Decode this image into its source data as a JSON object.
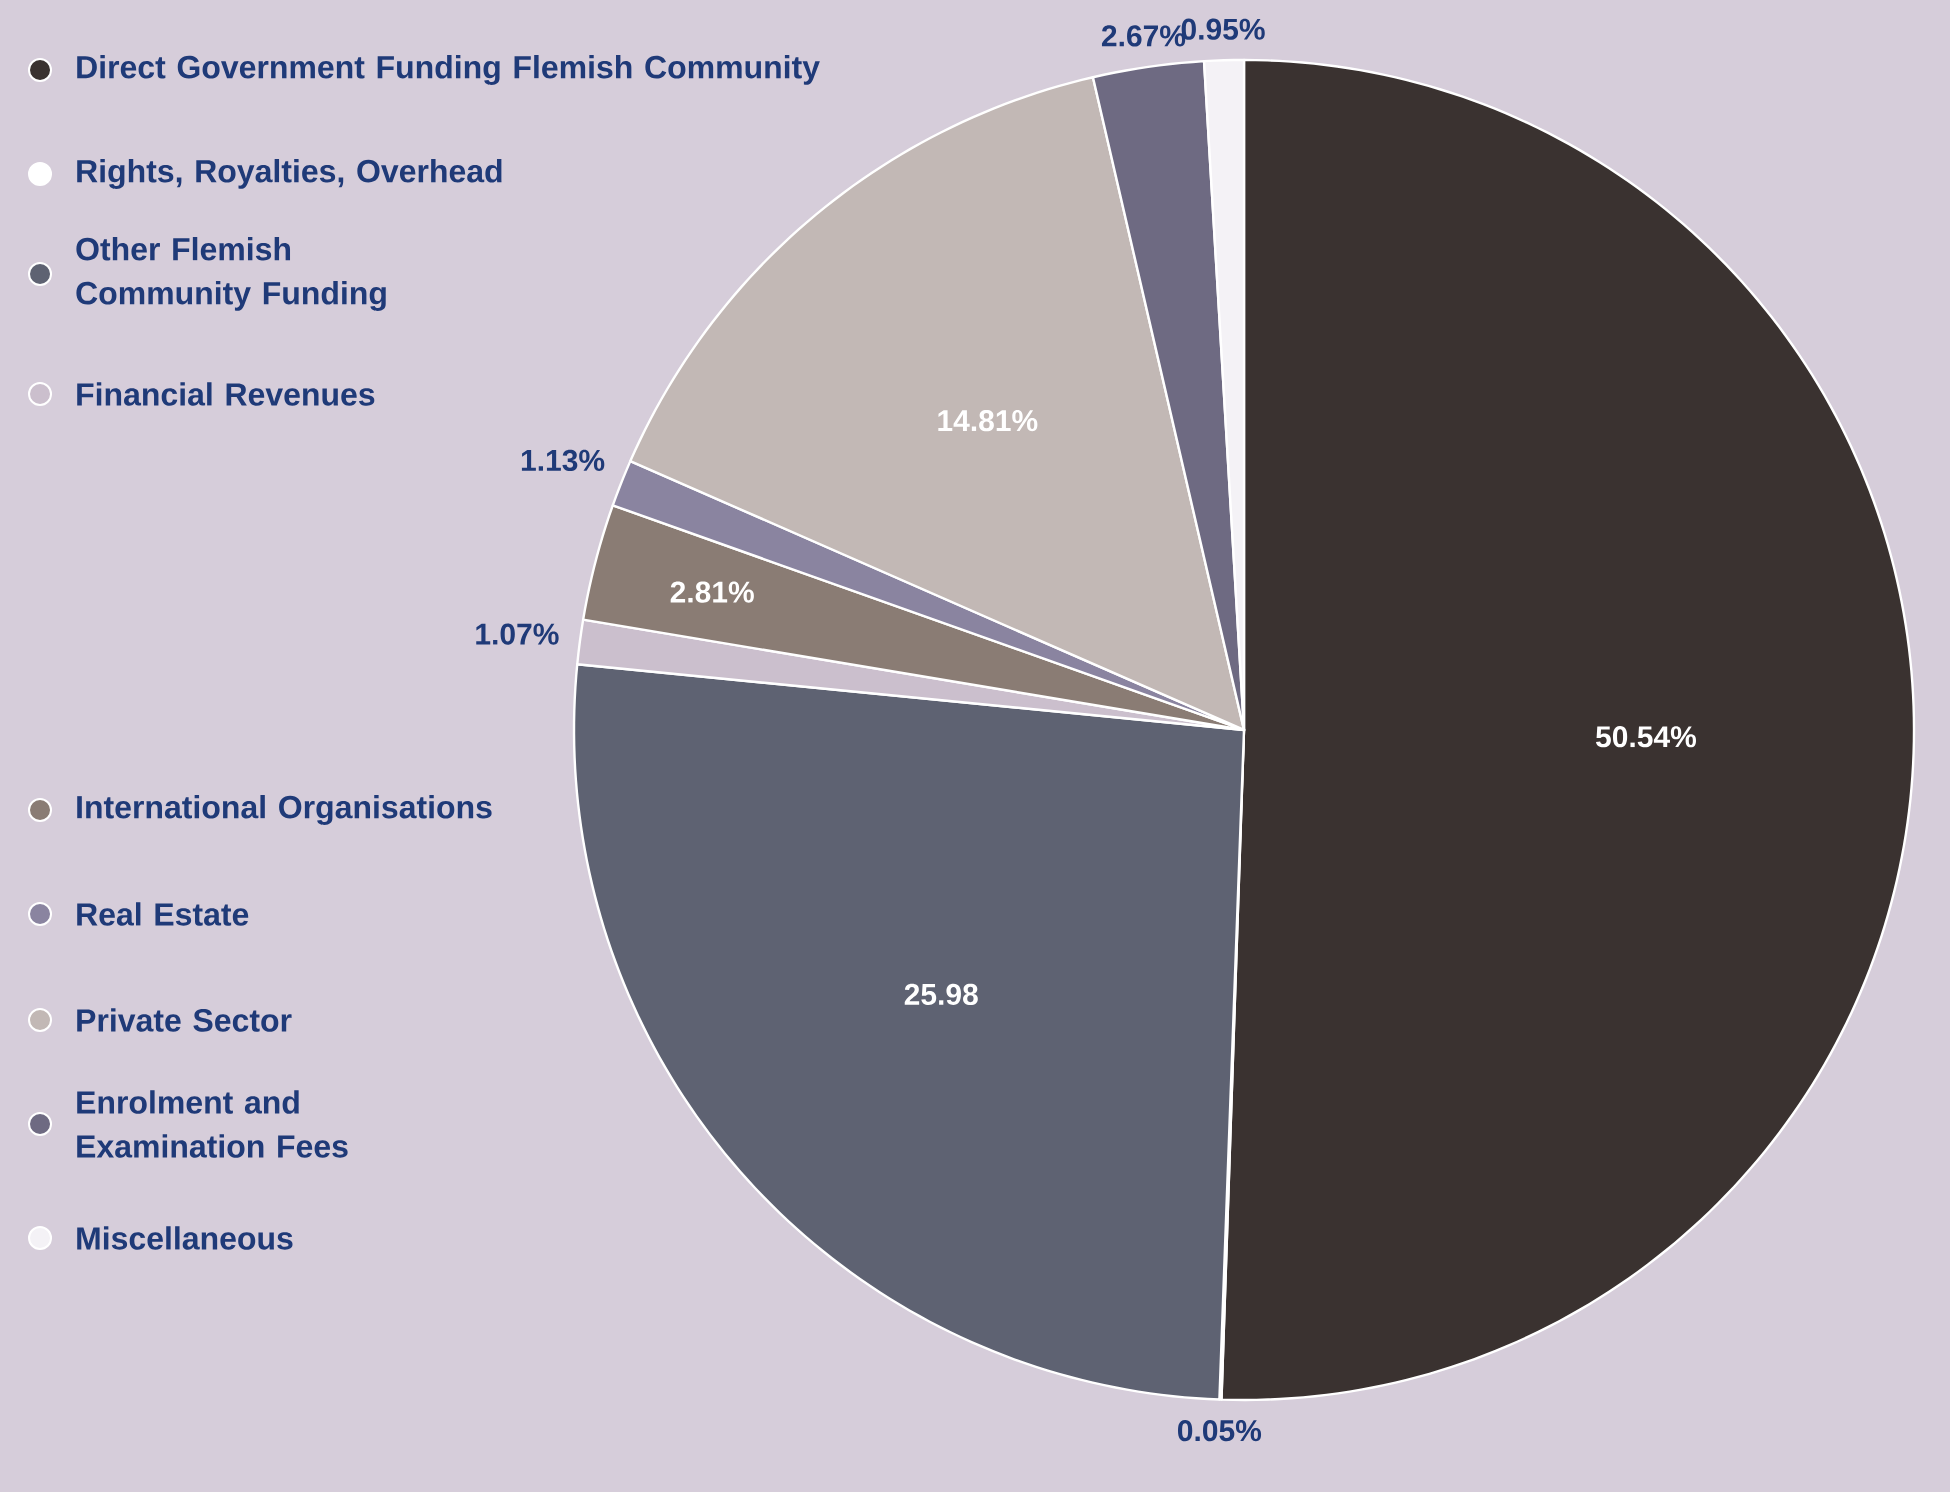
{
  "chart_data": {
    "type": "pie",
    "categories": [
      "Direct Government Funding Flemish Community",
      "Rights, Royalties, Overhead",
      "Other Flemish Community Funding",
      "Financial Revenues",
      "International Organisations",
      "Real Estate",
      "Private Sector",
      "Enrolment and Examination Fees",
      "Miscellaneous"
    ],
    "values": [
      50.54,
      0.05,
      25.98,
      1.07,
      2.81,
      1.13,
      14.81,
      2.67,
      0.95
    ],
    "value_labels": [
      "50.54%",
      "0.05%",
      "25.98",
      "1.07%",
      "2.81%",
      "1.13%",
      "14.81%",
      "2.67%",
      "0.95%"
    ],
    "colors": [
      "#3a3230",
      "#ffffff",
      "#5e6272",
      "#cbbfcd",
      "#8a7c74",
      "#8a84a0",
      "#c2b8b5",
      "#6e6a82",
      "#f4f2f6"
    ],
    "legend": "left"
  }
}
